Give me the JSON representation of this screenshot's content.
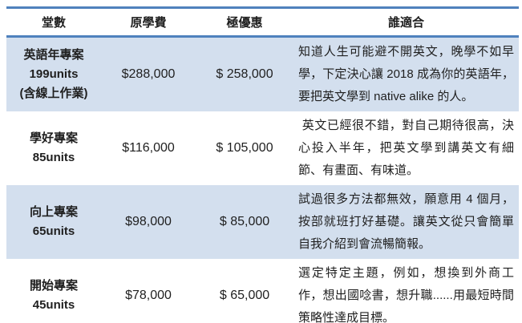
{
  "colors": {
    "accent_border": "#4F81BD",
    "band_fill": "#D3DFEE",
    "text": "#1F1F1F",
    "background": "#FFFFFF"
  },
  "table": {
    "headers": [
      "堂數",
      "原學費",
      "極優惠",
      "誰適合"
    ],
    "rows": [
      {
        "plan_name": "英語年專案",
        "units": "199units",
        "note": "(含線上作業)",
        "original_price": "$288,000",
        "discount_price": "$ 258,000",
        "who": "知道人生可能避不開英文，晚學不如早學，下定決心讓 2018 成為你的英語年，要把英文學到 native alike 的人。"
      },
      {
        "plan_name": "學好專案",
        "units": "85units",
        "note": "",
        "original_price": "$116,000",
        "discount_price": "$ 105,000",
        "who": " 英文已經很不錯，對自己期待很高，決心投入半年，把英文學到講英文有細節、有畫面、有味道。"
      },
      {
        "plan_name": "向上專案",
        "units": "65units",
        "note": "",
        "original_price": "$98,000",
        "discount_price": "$ 85,000",
        "who": "試過很多方法都無效，願意用 4 個月，按部就班打好基礎。讓英文從只會簡單自我介紹到會流暢簡報。"
      },
      {
        "plan_name": "開始專案",
        "units": "45units",
        "note": "",
        "original_price": "$78,000",
        "discount_price": "$ 65,000",
        "who": "選定特定主題，例如，想換到外商工作，想出國唸書，想升職......用最短時間策略性達成目標。"
      }
    ]
  }
}
